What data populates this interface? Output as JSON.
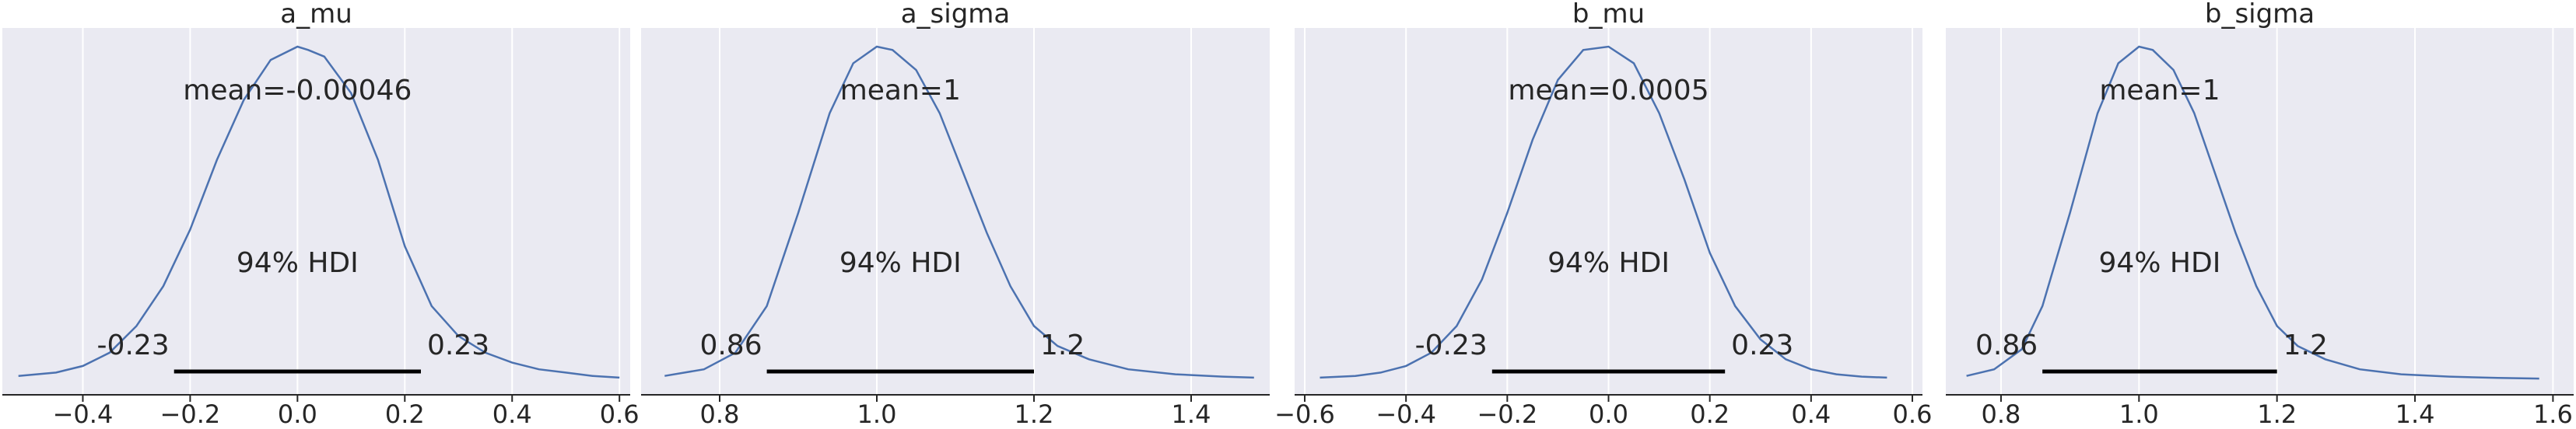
{
  "chart_data": [
    {
      "type": "area",
      "title": "a_mu",
      "xlabel": "",
      "ylabel": "",
      "xlim": [
        -0.55,
        0.62
      ],
      "xticks": [
        -0.4,
        -0.2,
        0.0,
        0.2,
        0.4,
        0.6
      ],
      "xtick_labels": [
        "−0.4",
        "−0.2",
        "0.0",
        "0.2",
        "0.4",
        "0.6"
      ],
      "grid": true,
      "series": [
        {
          "x": [
            -0.52,
            -0.45,
            -0.4,
            -0.35,
            -0.3,
            -0.25,
            -0.2,
            -0.15,
            -0.1,
            -0.05,
            0.0,
            0.02,
            0.05,
            0.1,
            0.15,
            0.2,
            0.25,
            0.3,
            0.35,
            0.4,
            0.45,
            0.5,
            0.55,
            0.6
          ],
          "density": [
            0.01,
            0.02,
            0.04,
            0.08,
            0.16,
            0.28,
            0.45,
            0.66,
            0.84,
            0.96,
            1.0,
            0.99,
            0.97,
            0.86,
            0.66,
            0.4,
            0.22,
            0.13,
            0.08,
            0.05,
            0.03,
            0.02,
            0.01,
            0.005
          ]
        }
      ],
      "mean_label": "mean=-0.00046",
      "hdi_label": "94% HDI",
      "hdi": [
        -0.23,
        0.23
      ],
      "hdi_low_label": "-0.23",
      "hdi_high_label": "0.23"
    },
    {
      "type": "area",
      "title": "a_sigma",
      "xlabel": "",
      "ylabel": "",
      "xlim": [
        0.7,
        1.5
      ],
      "xticks": [
        0.8,
        1.0,
        1.2,
        1.4
      ],
      "xtick_labels": [
        "0.8",
        "1.0",
        "1.2",
        "1.4"
      ],
      "grid": true,
      "series": [
        {
          "x": [
            0.73,
            0.78,
            0.82,
            0.86,
            0.9,
            0.94,
            0.97,
            1.0,
            1.02,
            1.05,
            1.08,
            1.11,
            1.14,
            1.17,
            1.2,
            1.23,
            1.27,
            1.32,
            1.38,
            1.44,
            1.48
          ],
          "density": [
            0.01,
            0.03,
            0.08,
            0.22,
            0.5,
            0.8,
            0.95,
            1.0,
            0.99,
            0.93,
            0.8,
            0.62,
            0.44,
            0.28,
            0.16,
            0.1,
            0.06,
            0.03,
            0.015,
            0.008,
            0.005
          ]
        }
      ],
      "mean_label": "mean=1",
      "hdi_label": "94% HDI",
      "hdi": [
        0.86,
        1.2
      ],
      "hdi_low_label": "0.86",
      "hdi_high_label": "1.2"
    },
    {
      "type": "area",
      "title": "b_mu",
      "xlabel": "",
      "ylabel": "",
      "xlim": [
        -0.62,
        0.62
      ],
      "xticks": [
        -0.6,
        -0.4,
        -0.2,
        0.0,
        0.2,
        0.4,
        0.6
      ],
      "xtick_labels": [
        "−0.6",
        "−0.4",
        "−0.2",
        "0.0",
        "0.2",
        "0.4",
        "0.6"
      ],
      "grid": true,
      "series": [
        {
          "x": [
            -0.57,
            -0.5,
            -0.45,
            -0.4,
            -0.35,
            -0.3,
            -0.25,
            -0.2,
            -0.15,
            -0.1,
            -0.05,
            0.0,
            0.05,
            0.1,
            0.15,
            0.2,
            0.25,
            0.3,
            0.35,
            0.4,
            0.45,
            0.5,
            0.55
          ],
          "density": [
            0.005,
            0.01,
            0.02,
            0.04,
            0.08,
            0.16,
            0.3,
            0.5,
            0.72,
            0.9,
            0.99,
            1.0,
            0.95,
            0.8,
            0.6,
            0.38,
            0.22,
            0.12,
            0.06,
            0.03,
            0.015,
            0.008,
            0.005
          ]
        }
      ],
      "mean_label": "mean=0.0005",
      "hdi_label": "94% HDI",
      "hdi": [
        -0.23,
        0.23
      ],
      "hdi_low_label": "-0.23",
      "hdi_high_label": "0.23"
    },
    {
      "type": "area",
      "title": "b_sigma",
      "xlabel": "",
      "ylabel": "",
      "xlim": [
        0.72,
        1.63
      ],
      "xticks": [
        0.8,
        1.0,
        1.2,
        1.4,
        1.6
      ],
      "xtick_labels": [
        "0.8",
        "1.0",
        "1.2",
        "1.4",
        "1.6"
      ],
      "grid": true,
      "series": [
        {
          "x": [
            0.75,
            0.79,
            0.83,
            0.86,
            0.9,
            0.94,
            0.97,
            1.0,
            1.02,
            1.05,
            1.08,
            1.11,
            1.14,
            1.17,
            1.2,
            1.23,
            1.27,
            1.32,
            1.38,
            1.45,
            1.52,
            1.58
          ],
          "density": [
            0.01,
            0.03,
            0.09,
            0.22,
            0.5,
            0.8,
            0.95,
            1.0,
            0.99,
            0.93,
            0.8,
            0.62,
            0.44,
            0.28,
            0.16,
            0.1,
            0.06,
            0.03,
            0.015,
            0.008,
            0.004,
            0.002
          ]
        }
      ],
      "mean_label": "mean=1",
      "hdi_label": "94% HDI",
      "hdi": [
        0.86,
        1.2
      ],
      "hdi_low_label": "0.86",
      "hdi_high_label": "1.2"
    }
  ],
  "colors": {
    "panel_bg": "#eaeaf2",
    "grid": "#ffffff",
    "density_line": "#4c72b0",
    "hdi_line": "#000000",
    "text": "#262626",
    "axis_line": "#262626"
  }
}
